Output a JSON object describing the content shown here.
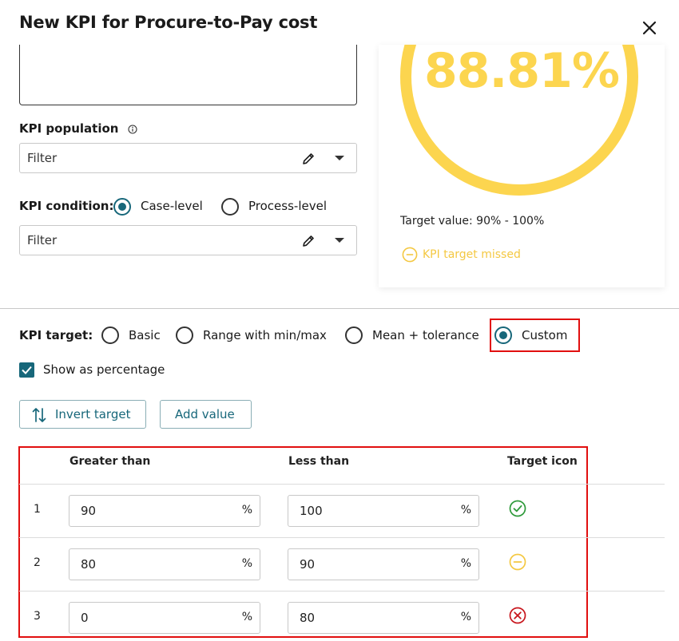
{
  "dialog": {
    "title": "New KPI for Procure-to-Pay cost"
  },
  "population": {
    "label": "KPI population",
    "filter_value": "Filter"
  },
  "condition": {
    "label": "KPI condition:",
    "options": [
      "Case-level",
      "Process-level"
    ],
    "selected": "Case-level",
    "filter_value": "Filter"
  },
  "preview": {
    "value": "88.81%",
    "gauge_level": 0.8881,
    "target_text": "Target value: 90% - 100%",
    "status_text": "KPI target missed",
    "accent_color": "#fcd54f"
  },
  "target": {
    "label": "KPI target:",
    "options": [
      "Basic",
      "Range with min/max",
      "Mean + tolerance",
      "Custom"
    ],
    "selected": "Custom",
    "show_percentage_label": "Show as percentage",
    "show_percentage_checked": true,
    "invert_label": "Invert target",
    "add_value_label": "Add value"
  },
  "table": {
    "headers": [
      "Greater than",
      "Less than",
      "Target icon"
    ],
    "rows": [
      {
        "index": "1",
        "greater": "90",
        "less": "100",
        "unit": "%",
        "icon": "check-circle-icon"
      },
      {
        "index": "2",
        "greater": "80",
        "less": "90",
        "unit": "%",
        "icon": "minus-circle-icon"
      },
      {
        "index": "3",
        "greater": "0",
        "less": "80",
        "unit": "%",
        "icon": "x-circle-icon"
      }
    ]
  },
  "colors": {
    "primary": "#17677a",
    "warning": "#fcd54f",
    "success": "#2e9a3a",
    "danger": "#c8161d",
    "highlight": "#e10f0f"
  }
}
